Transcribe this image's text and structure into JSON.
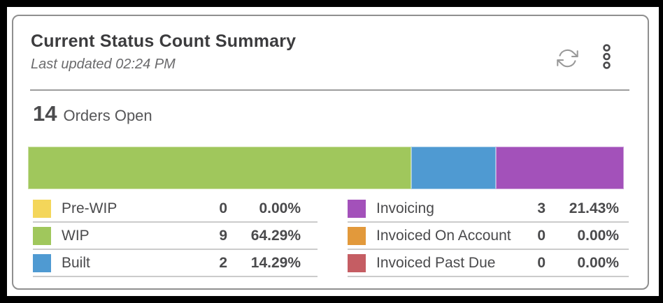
{
  "card": {
    "title": "Current Status Count Summary",
    "subtitle": "Last updated 02:24 PM",
    "summary": {
      "count": "14",
      "label": "Orders Open"
    },
    "toolbar": {
      "refresh_icon": "refresh-icon",
      "menu_icon": "kebab-menu-icon"
    }
  },
  "chart_data": {
    "type": "bar",
    "variant": "stacked-horizontal-single-bar",
    "title": "Current Status Count Summary",
    "total": 14,
    "total_label": "14 Orders Open",
    "categories": [
      "Pre-WIP",
      "WIP",
      "Built",
      "Invoicing",
      "Invoiced On Account",
      "Invoiced Past Due"
    ],
    "series": [
      {
        "name": "Pre-WIP",
        "count": 0,
        "percent": "0.00%",
        "color": "#F4D65A"
      },
      {
        "name": "WIP",
        "count": 9,
        "percent": "64.29%",
        "color": "#A0C75C"
      },
      {
        "name": "Built",
        "count": 2,
        "percent": "14.29%",
        "color": "#4F9AD2"
      },
      {
        "name": "Invoicing",
        "count": 3,
        "percent": "21.43%",
        "color": "#A351BA"
      },
      {
        "name": "Invoiced On Account",
        "count": 0,
        "percent": "0.00%",
        "color": "#E2993B"
      },
      {
        "name": "Invoiced Past Due",
        "count": 0,
        "percent": "0.00%",
        "color": "#C55D63"
      }
    ],
    "legend_position": "bottom-two-columns"
  },
  "colors": {
    "frame": "#000000",
    "card_border": "#8f8f8f",
    "header_divider": "#9c9c9c",
    "row_divider": "#cbcbcb",
    "refresh_icon": "#999999",
    "menu_icon": "#4a4a4c"
  }
}
